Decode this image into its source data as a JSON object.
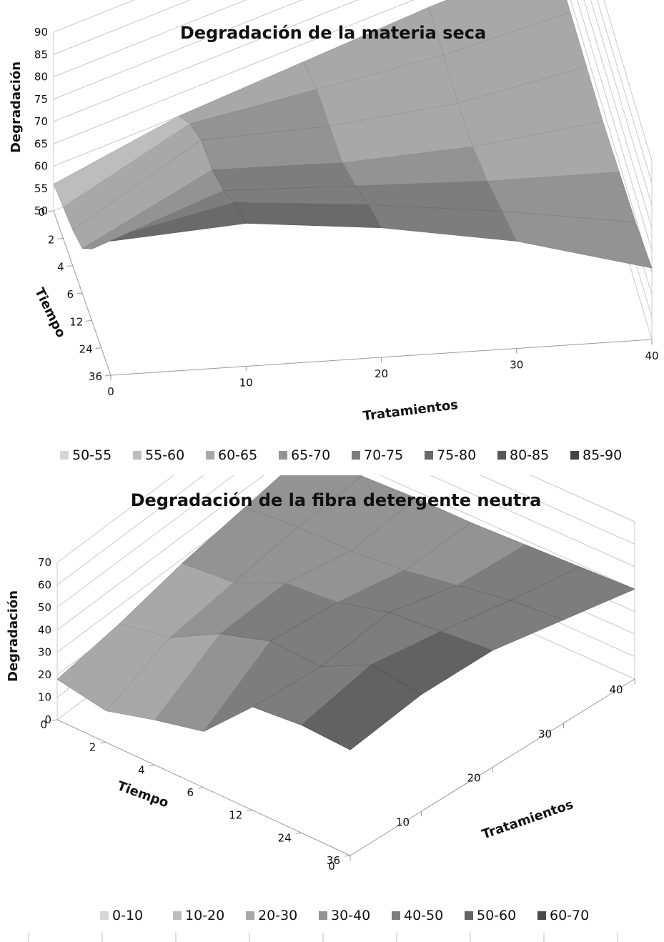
{
  "chart_data": [
    {
      "type": "surface",
      "title": "Degradación de la materia seca",
      "zlabel": "Degradación",
      "ylabel": "Tiempo",
      "xlabel": "Tratamientos",
      "zlim": [
        50,
        90
      ],
      "z_ticks": [
        "50",
        "55",
        "60",
        "65",
        "70",
        "75",
        "80",
        "85",
        "90"
      ],
      "tiempo_ticks": [
        "0",
        "2",
        "4",
        "6",
        "12",
        "24",
        "36"
      ],
      "tratamiento_ticks": [
        "0",
        "10",
        "20",
        "30",
        "40"
      ],
      "tratamientos": [
        0,
        10,
        20,
        30,
        40
      ],
      "series": [
        {
          "tiempo": "0",
          "values": [
            56,
            60,
            61,
            62,
            62
          ]
        },
        {
          "tiempo": "2",
          "values": [
            57,
            66,
            64,
            62,
            62
          ]
        },
        {
          "tiempo": "4",
          "values": [
            58,
            70,
            65,
            62,
            62
          ]
        },
        {
          "tiempo": "6",
          "values": [
            60,
            71,
            66,
            63,
            62
          ]
        },
        {
          "tiempo": "12",
          "values": [
            66,
            74,
            70,
            66,
            63
          ]
        },
        {
          "tiempo": "24",
          "values": [
            74,
            79,
            75,
            70,
            64
          ]
        },
        {
          "tiempo": "36",
          "values": [
            80,
            82,
            79,
            74,
            66
          ]
        }
      ],
      "legend": [
        "50-55",
        "55-60",
        "60-65",
        "65-70",
        "70-75",
        "75-80",
        "80-85",
        "85-90"
      ],
      "legend_position": "bottom"
    },
    {
      "type": "surface",
      "title": "Degradación de la fibra detergente neutra",
      "zlabel": "Degradación",
      "ylabel": "Tiempo",
      "xlabel": "Tratamientos",
      "zlim": [
        0,
        70
      ],
      "z_ticks": [
        "0",
        "10",
        "20",
        "30",
        "40",
        "50",
        "60",
        "70"
      ],
      "tiempo_ticks": [
        "0",
        "2",
        "4",
        "6",
        "12",
        "24",
        "36"
      ],
      "tratamiento_ticks": [
        "0",
        "10",
        "20",
        "30",
        "40"
      ],
      "tratamientos": [
        0,
        10,
        20,
        30,
        40
      ],
      "series": [
        {
          "tiempo": "0",
          "values": [
            18,
            22,
            28,
            32,
            36
          ]
        },
        {
          "tiempo": "2",
          "values": [
            14,
            26,
            30,
            34,
            36
          ]
        },
        {
          "tiempo": "4",
          "values": [
            20,
            38,
            40,
            34,
            37
          ]
        },
        {
          "tiempo": "6",
          "values": [
            25,
            45,
            42,
            36,
            37
          ]
        },
        {
          "tiempo": "12",
          "values": [
            46,
            44,
            48,
            40,
            38
          ]
        },
        {
          "tiempo": "24",
          "values": [
            48,
            55,
            50,
            44,
            39
          ]
        },
        {
          "tiempo": "36",
          "values": [
            47,
            52,
            52,
            46,
            40
          ]
        }
      ],
      "legend": [
        "0-10",
        "10-20",
        "20-30",
        "30-40",
        "40-50",
        "50-60",
        "60-70"
      ],
      "legend_position": "bottom"
    }
  ],
  "colors": {
    "legend_scale_1": [
      "#d6d6d6",
      "#bdbdbd",
      "#a8a8a8",
      "#939393",
      "#7d7d7d",
      "#6a6a6a",
      "#575757",
      "#444444"
    ],
    "legend_scale_2": [
      "#d6d6d6",
      "#bdbdbd",
      "#a8a8a8",
      "#939393",
      "#7d7d7d",
      "#626262",
      "#4a4a4a"
    ]
  }
}
